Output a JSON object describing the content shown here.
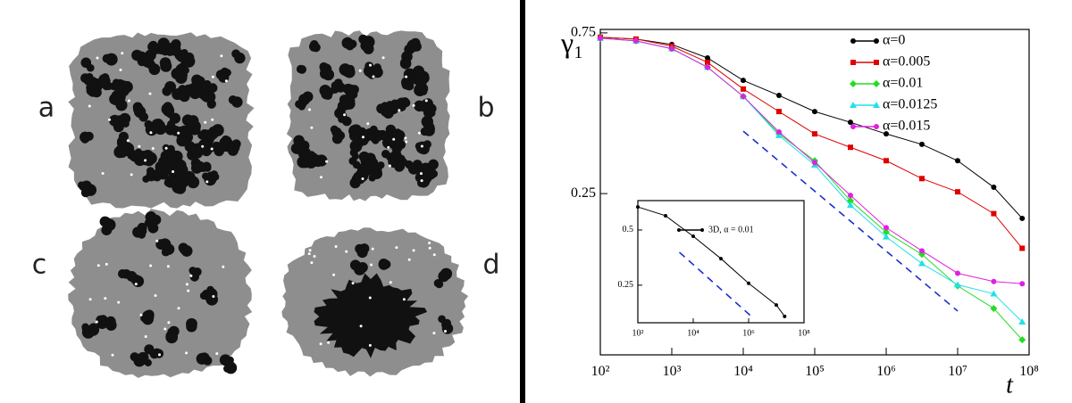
{
  "panel_labels": [
    "a",
    "b",
    "c",
    "d"
  ],
  "chart_data": [
    {
      "type": "line",
      "xlabel": "t",
      "ylabel": "γ₁",
      "xscale": "log",
      "yscale": "log",
      "legend": "upper right",
      "xlim": [
        100,
        100000000
      ],
      "ylim": [
        0.083,
        0.768
      ],
      "xticks": [
        {
          "value": 100,
          "label": "10²"
        },
        {
          "value": 1000,
          "label": "10³"
        },
        {
          "value": 10000,
          "label": "10⁴"
        },
        {
          "value": 100000,
          "label": "10⁵"
        },
        {
          "value": 1000000,
          "label": "10⁶"
        },
        {
          "value": 10000000,
          "label": "10⁷"
        },
        {
          "value": 100000000,
          "label": "10⁸"
        }
      ],
      "yticks": [
        0.75,
        0.25
      ],
      "x": [
        100,
        316,
        1000,
        3162,
        10000,
        31623,
        100000,
        316228,
        1000000,
        3162278,
        10000000,
        32000000,
        80000000
      ],
      "series": [
        {
          "name": "α=0",
          "color": "#000000",
          "marker": "circle",
          "values": [
            0.728,
            0.719,
            0.693,
            0.632,
            0.542,
            0.489,
            0.438,
            0.407,
            0.376,
            0.35,
            0.313,
            0.261,
            0.211
          ]
        },
        {
          "name": "α=0.005",
          "color": "#e00000",
          "marker": "square",
          "values": [
            0.728,
            0.719,
            0.685,
            0.613,
            0.511,
            0.438,
            0.376,
            0.343,
            0.313,
            0.277,
            0.253,
            0.218,
            0.172
          ]
        },
        {
          "name": "α=0.01",
          "color": "#22dd22",
          "marker": "diamond",
          "values": [
            0.723,
            0.71,
            0.673,
            0.593,
            0.486,
            0.376,
            0.313,
            0.238,
            0.192,
            0.165,
            0.133,
            0.114,
            0.092
          ]
        },
        {
          "name": "α=0.0125",
          "color": "#22e0e8",
          "marker": "triangle",
          "values": [
            0.723,
            0.71,
            0.673,
            0.593,
            0.486,
            0.372,
            0.304,
            0.231,
            0.186,
            0.155,
            0.134,
            0.126,
            0.104
          ]
        },
        {
          "name": "α=0.015",
          "color": "#e020e0",
          "marker": "circle",
          "values": [
            0.723,
            0.71,
            0.673,
            0.593,
            0.486,
            0.381,
            0.309,
            0.247,
            0.198,
            0.169,
            0.145,
            0.137,
            0.135
          ]
        }
      ],
      "reference_line": {
        "color": "#1a2fd0",
        "x": [
          10000,
          10000000
        ],
        "values": [
          0.383,
          0.112
        ]
      }
    },
    {
      "type": "line",
      "xscale": "log",
      "yscale": "log",
      "legend": "upper right",
      "xlim": [
        100,
        100000000
      ],
      "ylim": [
        0.156,
        0.723
      ],
      "xticks": [
        {
          "value": 100,
          "label": "10²"
        },
        {
          "value": 10000,
          "label": "10⁴"
        },
        {
          "value": 1000000,
          "label": "10⁶"
        },
        {
          "value": 100000000,
          "label": "10⁸"
        }
      ],
      "yticks": [
        0.5,
        0.25
      ],
      "x": [
        100,
        1000,
        10000,
        100000,
        1000000,
        10000000,
        20000000
      ],
      "series": [
        {
          "name": "3D, α = 0.01",
          "color": "#000000",
          "marker": "circle",
          "values": [
            0.668,
            0.598,
            0.462,
            0.349,
            0.256,
            0.195,
            0.169
          ]
        }
      ],
      "reference_line": {
        "color": "#1a2fd0",
        "x": [
          3162,
          1260000
        ],
        "values": [
          0.378,
          0.169
        ]
      }
    }
  ]
}
